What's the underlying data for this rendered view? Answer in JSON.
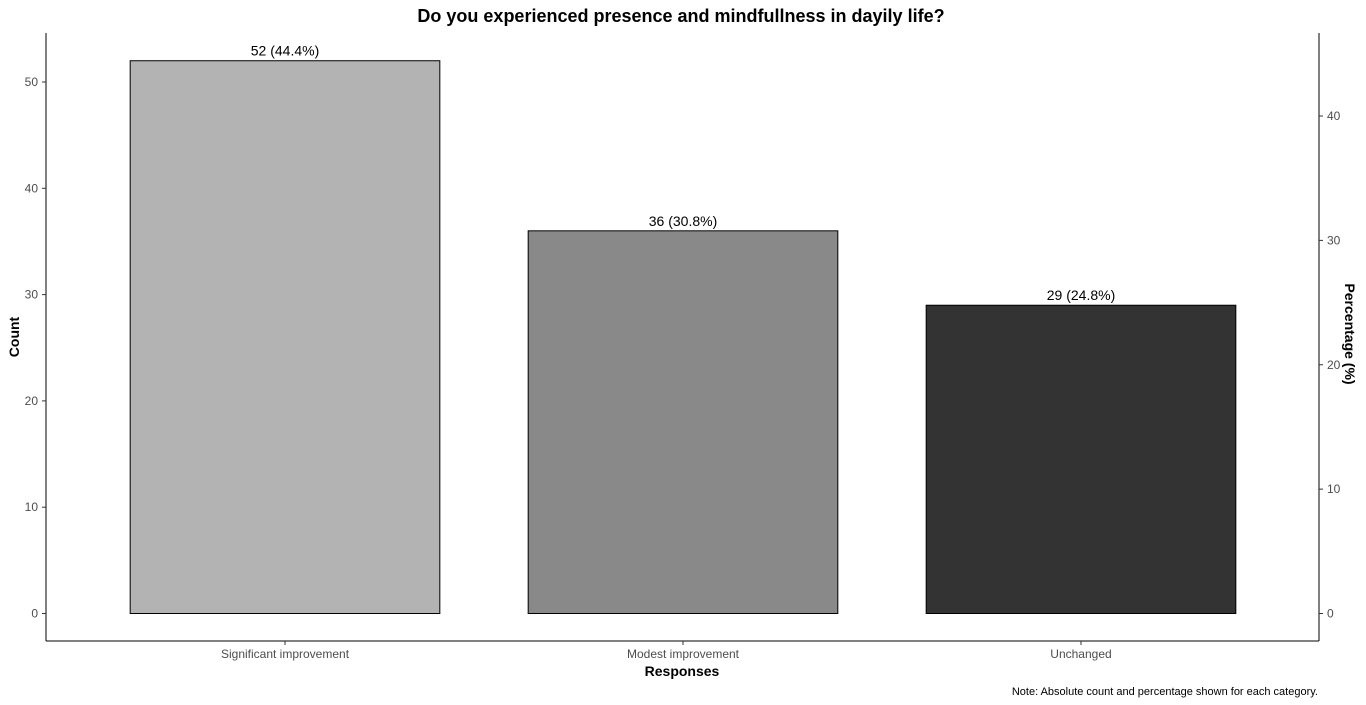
{
  "chart_data": {
    "type": "bar",
    "title": "Do you experienced presence and mindfullness in dayily life?",
    "xlabel": "Responses",
    "ylabel": "Count",
    "y2label": "Percentage (%)",
    "categories": [
      "Significant improvement",
      "Modest improvement",
      "Unchanged"
    ],
    "values": [
      52,
      36,
      29
    ],
    "data_labels": [
      "52 (44.4%)",
      "36 (30.8%)",
      "29 (24.8%)"
    ],
    "colors": [
      "#b3b3b3",
      "#898989",
      "#333333"
    ],
    "ylim": [
      0,
      54.5
    ],
    "yticks": [
      0,
      10,
      20,
      30,
      40,
      50
    ],
    "y2ticks": [
      0,
      10,
      20,
      30,
      40
    ],
    "y2_per_count": 0.8547,
    "caption": "Note: Absolute count and percentage shown for each category.",
    "grid": false,
    "legend": "none"
  }
}
